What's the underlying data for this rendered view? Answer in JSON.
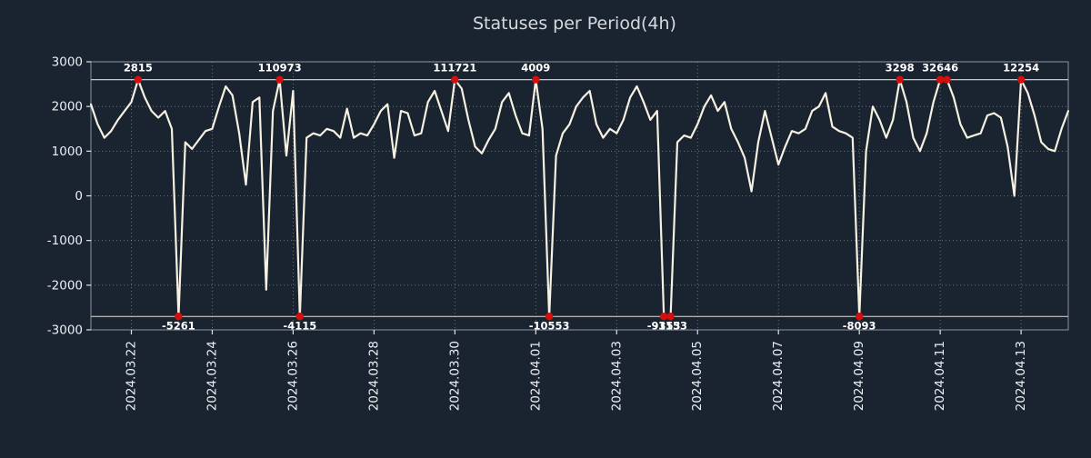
{
  "chart_data": {
    "type": "line",
    "title": "Statuses per Period(4h)",
    "background": "#1a2330",
    "line_color": "#f6f1e1",
    "marker_color": "#d40f0f",
    "grid": true,
    "legend": "none",
    "ylim": [
      -3000,
      3000
    ],
    "yticks": [
      3000,
      2000,
      1000,
      0,
      -1000,
      -2000,
      -3000
    ],
    "clip_high": 2600,
    "clip_low": -2700,
    "x_tick_labels": [
      "2024.03.22",
      "2024.03.24",
      "2024.03.26",
      "2024.03.28",
      "2024.03.30",
      "2024.04.01",
      "2024.04.03",
      "2024.04.05",
      "2024.04.07",
      "2024.04.09",
      "2024.04.11",
      "2024.04.13"
    ],
    "x_tick_indices": [
      6,
      18,
      30,
      42,
      54,
      66,
      78,
      90,
      102,
      114,
      126,
      138
    ],
    "values": [
      2050,
      1600,
      1300,
      1450,
      1700,
      1900,
      2100,
      2600,
      2200,
      1900,
      1750,
      1900,
      1500,
      -2700,
      1200,
      1050,
      1250,
      1450,
      1500,
      2000,
      2450,
      2250,
      1400,
      250,
      2100,
      2200,
      -2100,
      1900,
      2600,
      900,
      2350,
      -2700,
      1300,
      1400,
      1350,
      1500,
      1450,
      1300,
      1950,
      1300,
      1400,
      1350,
      1600,
      1900,
      2050,
      850,
      1900,
      1850,
      1350,
      1400,
      2100,
      2350,
      1900,
      1450,
      2600,
      2400,
      1700,
      1100,
      950,
      1250,
      1500,
      2100,
      2300,
      1800,
      1400,
      1350,
      2600,
      1500,
      -2700,
      900,
      1400,
      1600,
      2000,
      2200,
      2350,
      1600,
      1300,
      1500,
      1400,
      1700,
      2200,
      2450,
      2100,
      1700,
      1900,
      -2700,
      -2700,
      1200,
      1350,
      1300,
      1600,
      2000,
      2250,
      1900,
      2100,
      1500,
      1200,
      850,
      100,
      1200,
      1900,
      1300,
      700,
      1100,
      1450,
      1400,
      1500,
      1900,
      2000,
      2300,
      1550,
      1450,
      1400,
      1300,
      -2700,
      1000,
      2000,
      1700,
      1300,
      1700,
      2600,
      2100,
      1300,
      1000,
      1400,
      2100,
      2600,
      2600,
      2200,
      1600,
      1300,
      1350,
      1400,
      1800,
      1850,
      1750,
      1100,
      0,
      2600,
      2300,
      1800,
      1200,
      1050,
      1000,
      1500,
      1900
    ],
    "annotations": [
      {
        "index": 7,
        "label": "2815",
        "pos": "top"
      },
      {
        "index": 13,
        "label": "-5261",
        "pos": "bottom"
      },
      {
        "index": 28,
        "label": "110973",
        "pos": "top"
      },
      {
        "index": 31,
        "label": "-4115",
        "pos": "bottom"
      },
      {
        "index": 54,
        "label": "111721",
        "pos": "top"
      },
      {
        "index": 66,
        "label": "4009",
        "pos": "top"
      },
      {
        "index": 68,
        "label": "-10553",
        "pos": "bottom"
      },
      {
        "index": 85,
        "label": "-9353",
        "pos": "bottom"
      },
      {
        "index": 86,
        "label": "-1153",
        "pos": "bottom"
      },
      {
        "index": 114,
        "label": "-8093",
        "pos": "bottom"
      },
      {
        "index": 120,
        "label": "3298",
        "pos": "top"
      },
      {
        "index": 126,
        "label": "32646",
        "pos": "top"
      },
      {
        "index": 127,
        "label": "",
        "pos": "top"
      },
      {
        "index": 138,
        "label": "12254",
        "pos": "top"
      }
    ]
  }
}
